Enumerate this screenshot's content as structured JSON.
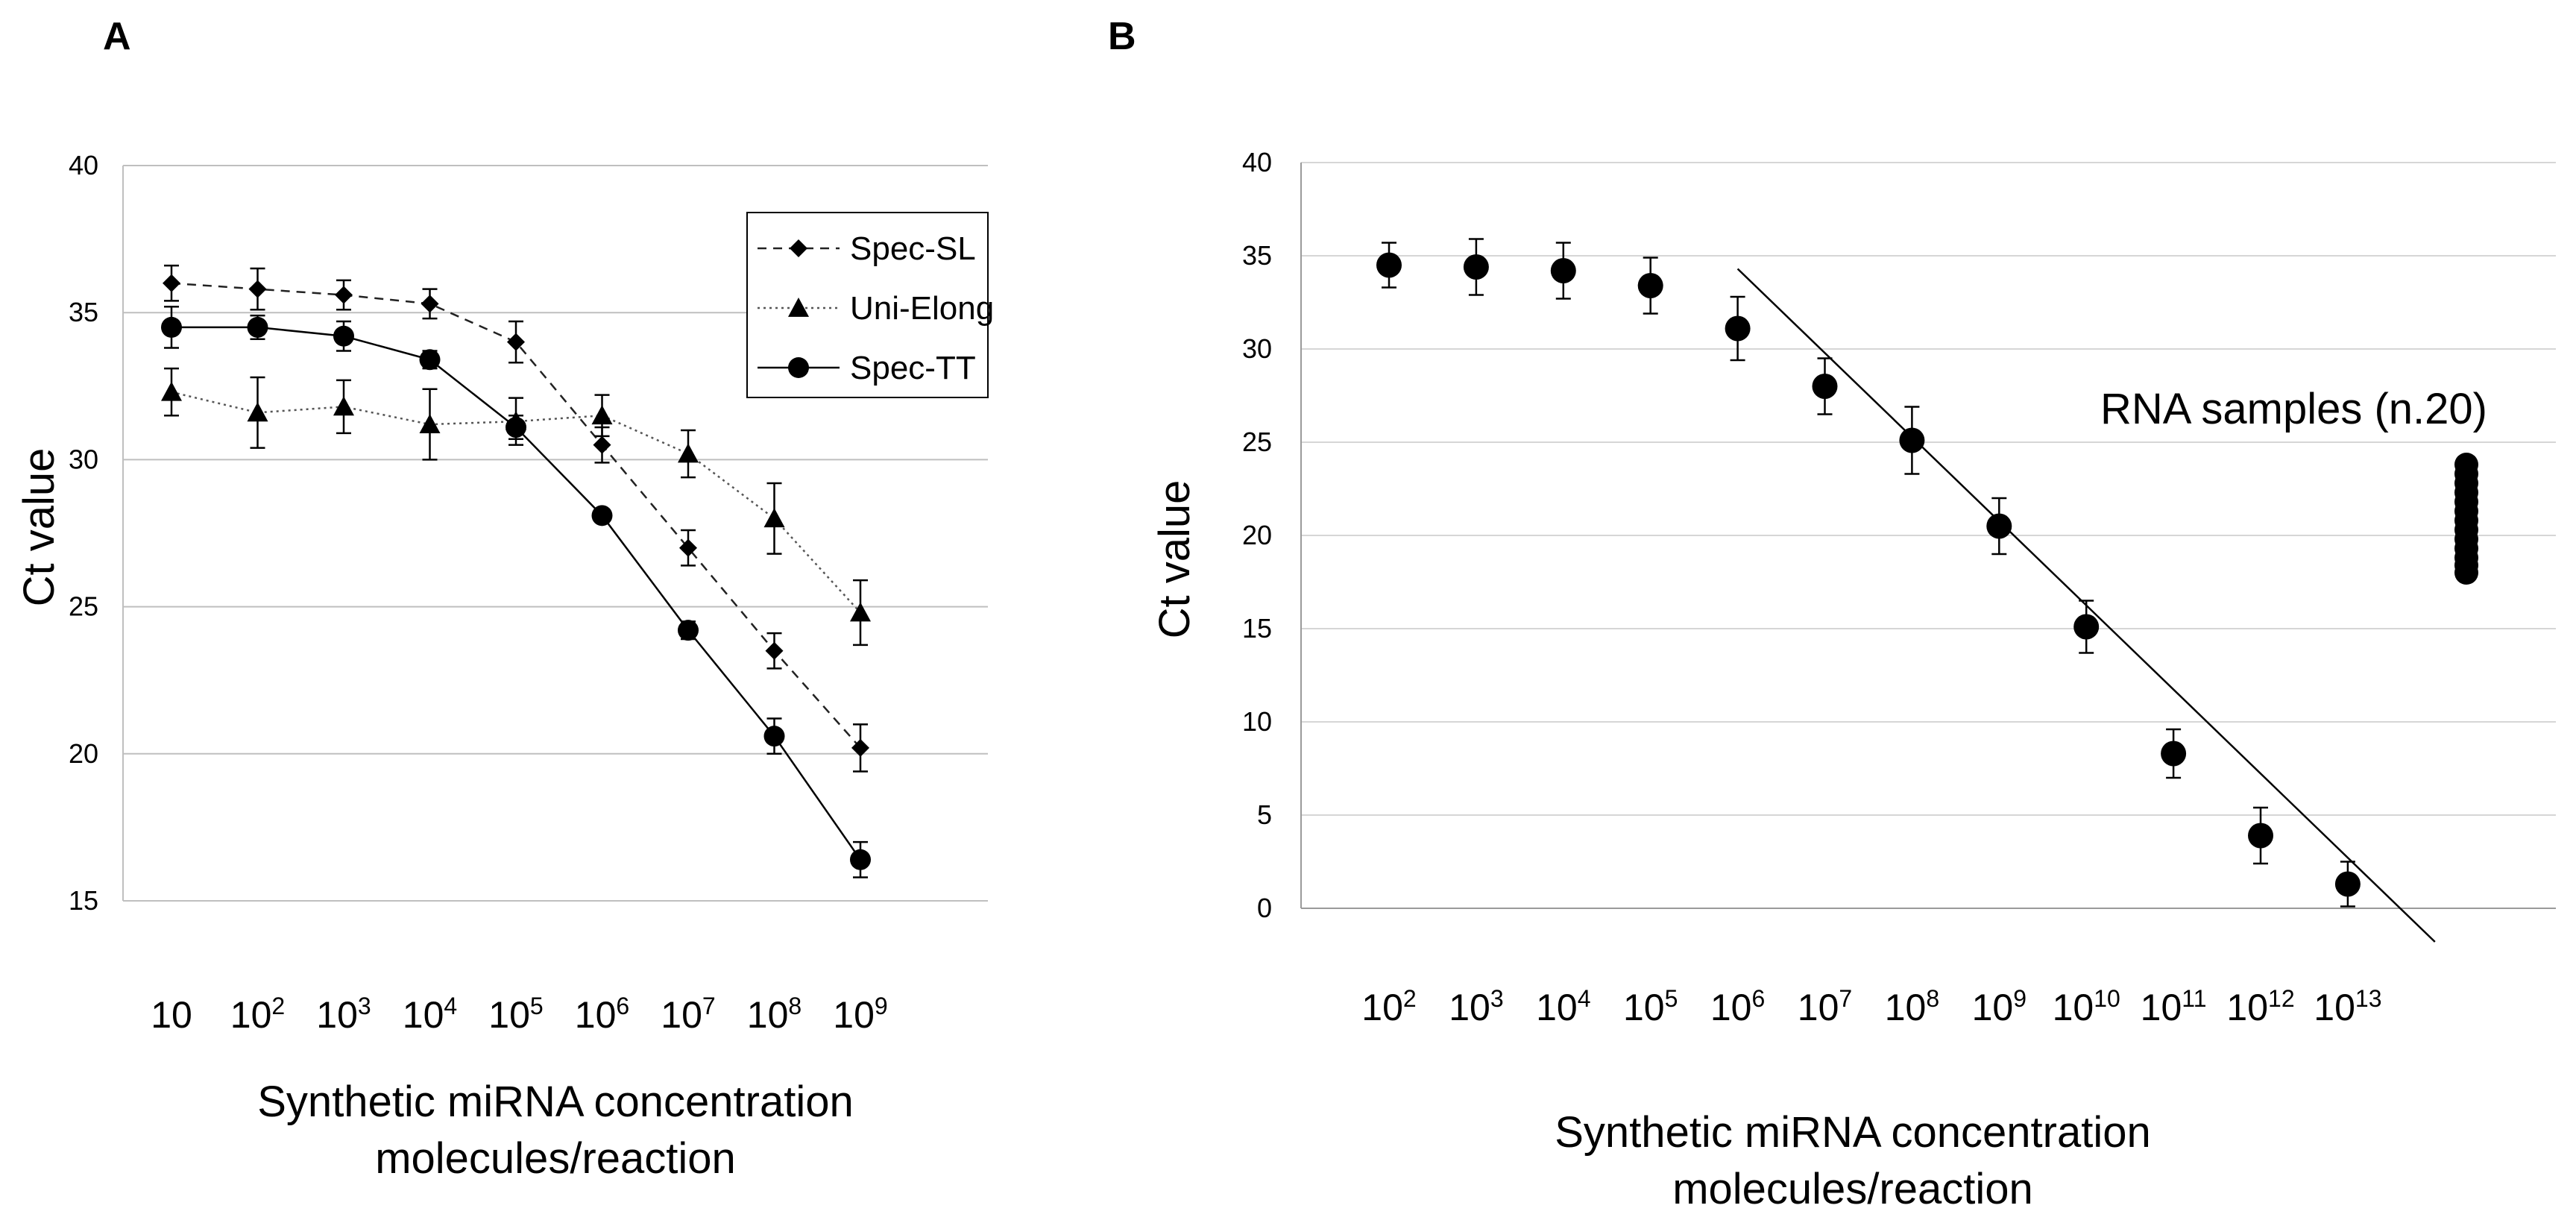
{
  "chart_data": [
    {
      "panel_label": "A",
      "type": "line",
      "title": "",
      "xlabel": "Synthetic miRNA concentration\nmolecules/reaction",
      "ylabel": "Ct value",
      "ylim": [
        15,
        40
      ],
      "yticks": [
        15,
        20,
        25,
        30,
        35,
        40
      ],
      "grid": true,
      "legend": "top-right",
      "categories": [
        {
          "base": "10",
          "exp": ""
        },
        {
          "base": "10",
          "exp": "2"
        },
        {
          "base": "10",
          "exp": "3"
        },
        {
          "base": "10",
          "exp": "4"
        },
        {
          "base": "10",
          "exp": "5"
        },
        {
          "base": "10",
          "exp": "6"
        },
        {
          "base": "10",
          "exp": "7"
        },
        {
          "base": "10",
          "exp": "8"
        },
        {
          "base": "10",
          "exp": "9"
        }
      ],
      "series": [
        {
          "name": "Spec-SL",
          "marker": "diamond",
          "line": "dashed",
          "values": [
            36.0,
            35.8,
            35.6,
            35.3,
            34.0,
            30.5,
            27.0,
            23.5,
            20.2
          ],
          "errors": [
            0.6,
            0.7,
            0.5,
            0.5,
            0.7,
            0.6,
            0.6,
            0.6,
            0.8
          ]
        },
        {
          "name": "Uni-Elong",
          "marker": "triangle",
          "line": "dotted",
          "values": [
            32.3,
            31.6,
            31.8,
            31.2,
            31.3,
            31.5,
            30.2,
            28.0,
            24.8
          ],
          "errors": [
            0.8,
            1.2,
            0.9,
            1.2,
            0.8,
            0.7,
            0.8,
            1.2,
            1.1
          ]
        },
        {
          "name": "Spec-TT",
          "marker": "circle",
          "line": "solid",
          "values": [
            34.5,
            34.5,
            34.2,
            33.4,
            31.1,
            28.1,
            24.2,
            20.6,
            16.4
          ],
          "errors": [
            0.7,
            0.4,
            0.5,
            0.3,
            0.4,
            0.2,
            0.3,
            0.6,
            0.6
          ]
        }
      ]
    },
    {
      "panel_label": "B",
      "type": "scatter",
      "title": "",
      "xlabel": "Synthetic miRNA concentration\nmolecules/reaction",
      "ylabel": "Ct value",
      "ylim": [
        0,
        40
      ],
      "yticks": [
        0,
        5,
        10,
        15,
        20,
        25,
        30,
        35,
        40
      ],
      "grid": true,
      "categories": [
        {
          "base": "10",
          "exp": "2"
        },
        {
          "base": "10",
          "exp": "3"
        },
        {
          "base": "10",
          "exp": "4"
        },
        {
          "base": "10",
          "exp": "5"
        },
        {
          "base": "10",
          "exp": "6"
        },
        {
          "base": "10",
          "exp": "7"
        },
        {
          "base": "10",
          "exp": "8"
        },
        {
          "base": "10",
          "exp": "9"
        },
        {
          "base": "10",
          "exp": "10"
        },
        {
          "base": "10",
          "exp": "11"
        },
        {
          "base": "10",
          "exp": "12"
        },
        {
          "base": "10",
          "exp": "13"
        }
      ],
      "series": [
        {
          "marker": "circle",
          "values": [
            34.5,
            34.4,
            34.2,
            33.4,
            31.1,
            28.0,
            25.1,
            20.5,
            15.1,
            8.3,
            3.9,
            1.3
          ],
          "errors": [
            1.2,
            1.5,
            1.5,
            1.5,
            1.7,
            1.5,
            1.8,
            1.5,
            1.4,
            1.3,
            1.5,
            1.2
          ]
        }
      ],
      "trendline": {
        "x_from_index": 4,
        "y_from": 34.3,
        "x_to_index": 12,
        "y_to": -1.8
      },
      "annotation": "RNA samples (n.20)",
      "samples": [
        23.8,
        23.3,
        22.8,
        22.3,
        21.8,
        21.3,
        20.8,
        20.3,
        19.8,
        19.3,
        18.8,
        18.4,
        18.0
      ]
    }
  ]
}
